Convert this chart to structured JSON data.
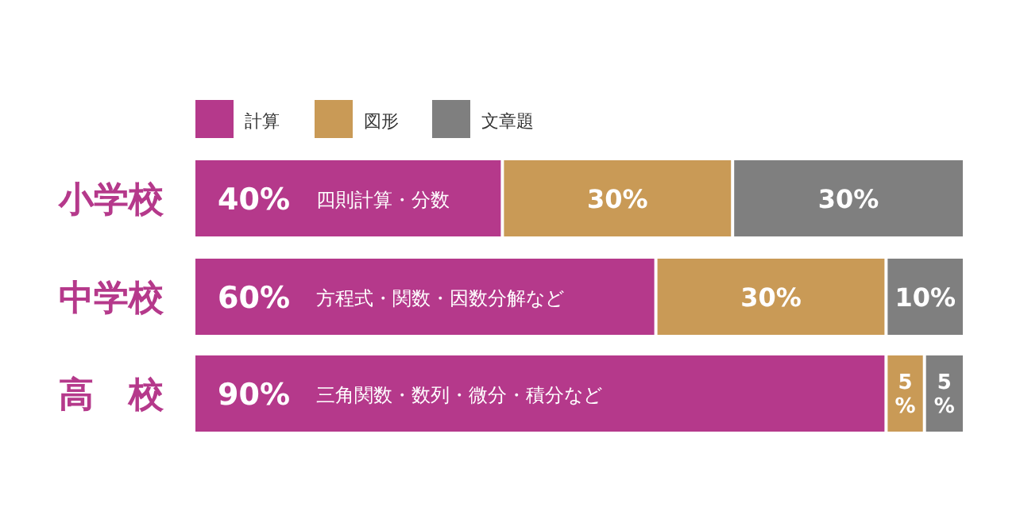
{
  "chart_data": {
    "type": "bar",
    "orientation": "horizontal",
    "stacked": true,
    "legend": "top left",
    "tick_labels": "y",
    "xlim": [
      0,
      100
    ],
    "categories": [
      "小学校",
      "中学校",
      "高　校"
    ],
    "series": [
      {
        "name": "計算",
        "color": "#b5398b",
        "values": [
          40,
          60,
          90
        ],
        "value_labels": [
          "40%",
          "60%",
          "90%"
        ]
      },
      {
        "name": "図形",
        "color": "#c99a56",
        "values": [
          30,
          30,
          5
        ],
        "value_labels": [
          "30%",
          "30%",
          "5%"
        ]
      },
      {
        "name": "文章題",
        "color": "#7f7f7f",
        "values": [
          30,
          10,
          5
        ],
        "value_labels": [
          "30%",
          "10%",
          "5%"
        ]
      }
    ],
    "annotations": [
      "四則計算・分数",
      "方程式・関数・因数分解など",
      "三角関数・数列・微分・積分など"
    ]
  }
}
